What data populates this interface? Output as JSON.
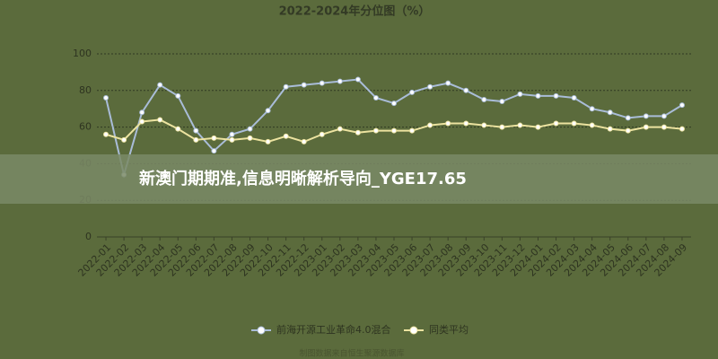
{
  "chart_data": {
    "type": "line",
    "title": "2022-2024年分位图（%）",
    "categories": [
      "2022-01",
      "2022-02",
      "2022-03",
      "2022-04",
      "2022-05",
      "2022-06",
      "2022-07",
      "2022-08",
      "2022-09",
      "2022-10",
      "2022-11",
      "2022-12",
      "2023-01",
      "2023-02",
      "2023-03",
      "2023-04",
      "2023-05",
      "2023-06",
      "2023-07",
      "2023-08",
      "2023-09",
      "2023-10",
      "2023-11",
      "2023-12",
      "2024-01",
      "2024-02",
      "2024-03",
      "2024-04",
      "2024-05",
      "2024-06",
      "2024-07",
      "2024-08",
      "2024-09"
    ],
    "series": [
      {
        "name": "前海开源工业革命4.0混合",
        "color": "#a9bcd8",
        "values": [
          76,
          34,
          68,
          83,
          77,
          58,
          47,
          56,
          59,
          69,
          82,
          83,
          84,
          85,
          86,
          76,
          73,
          79,
          82,
          84,
          80,
          75,
          74,
          78,
          77,
          77,
          76,
          70,
          68,
          65,
          66,
          66,
          72
        ]
      },
      {
        "name": "同类平均",
        "color": "#ece3a0",
        "values": [
          56,
          53,
          63,
          64,
          59,
          53,
          54,
          53,
          54,
          52,
          55,
          52,
          56,
          59,
          57,
          58,
          58,
          58,
          61,
          62,
          62,
          61,
          60,
          61,
          60,
          62,
          62,
          61,
          59,
          58,
          60,
          60,
          59
        ]
      }
    ],
    "ylim": [
      0,
      100
    ],
    "yticks": [
      0,
      20,
      40,
      60,
      80,
      100
    ],
    "grid": true,
    "source": "制图数据来自恒生聚源数据库"
  },
  "banner": "新澳门期期准,信息明晰解析导向_YGE17.65"
}
